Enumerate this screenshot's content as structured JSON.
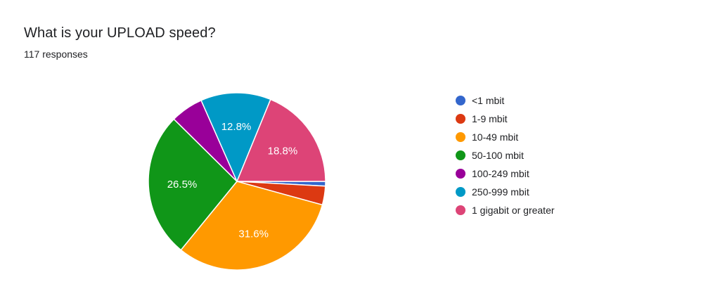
{
  "header": {
    "title": "What is your UPLOAD speed?",
    "subtitle": "117 responses"
  },
  "chart_data": {
    "type": "pie",
    "title": "What is your UPLOAD speed?",
    "start_angle_deg": 90,
    "direction": "clockwise",
    "legend_placement": "right",
    "slices": [
      {
        "label": "<1 mbit",
        "count": 1,
        "percent": 0.9,
        "color": "#3366cc",
        "show_label": false
      },
      {
        "label": "1-9 mbit",
        "count": 4,
        "percent": 3.4,
        "color": "#dc3912",
        "show_label": false
      },
      {
        "label": "10-49 mbit",
        "count": 37,
        "percent": 31.6,
        "color": "#ff9900",
        "show_label": true
      },
      {
        "label": "50-100 mbit",
        "count": 31,
        "percent": 26.5,
        "color": "#109618",
        "show_label": true
      },
      {
        "label": "100-249 mbit",
        "count": 7,
        "percent": 6.0,
        "color": "#990099",
        "show_label": false
      },
      {
        "label": "250-999 mbit",
        "count": 15,
        "percent": 12.8,
        "color": "#0099c6",
        "show_label": true
      },
      {
        "label": "1 gigabit or greater",
        "count": 22,
        "percent": 18.8,
        "color": "#dd4477",
        "show_label": true
      }
    ]
  }
}
